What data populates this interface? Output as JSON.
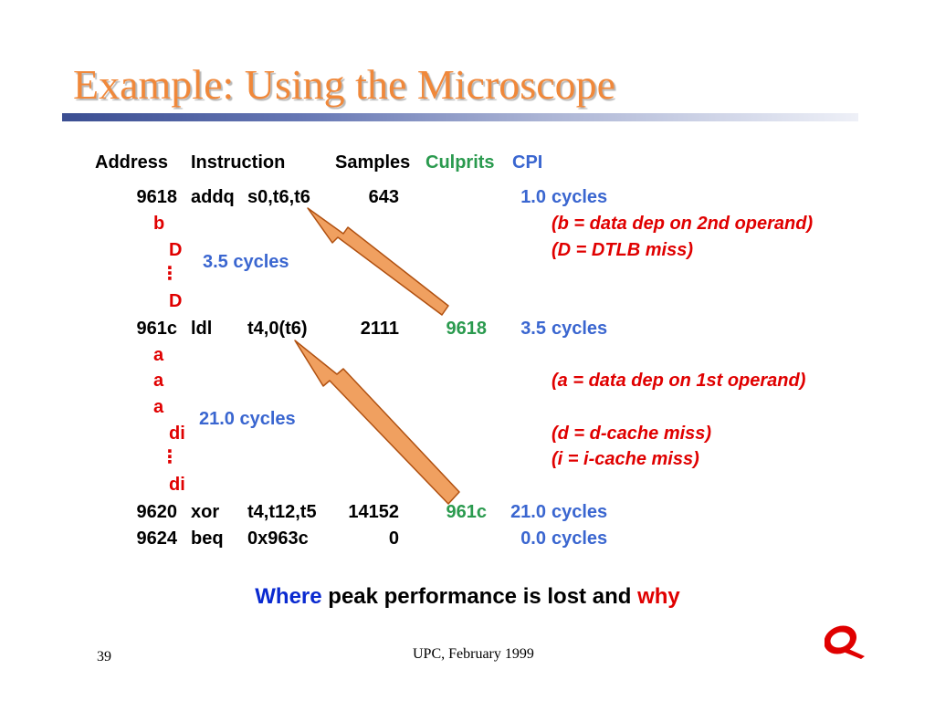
{
  "slide": {
    "title": "Example: Using the Microscope",
    "header": {
      "address": "Address",
      "instruction": "Instruction",
      "samples": "Samples",
      "culprits": "Culprits",
      "cpi": "CPI"
    },
    "rows": [
      {
        "address": "9618",
        "op": "addq",
        "operands": "s0,t6,t6",
        "samples": "643",
        "culprit": "",
        "cpi": "1.0",
        "unit": "cycles"
      },
      {
        "address": "961c",
        "op": "ldl",
        "operands": "t4,0(t6)",
        "samples": "2111",
        "culprit": "9618",
        "cpi": "3.5",
        "unit": "cycles"
      },
      {
        "address": "9620",
        "op": "xor",
        "operands": "t4,t12,t5",
        "samples": "14152",
        "culprit": "961c",
        "cpi": "21.0",
        "unit": "cycles"
      },
      {
        "address": "9624",
        "op": "beq",
        "operands": "0x963c",
        "samples": "0",
        "culprit": "",
        "cpi": "0.0",
        "unit": "cycles"
      }
    ],
    "stalls_1": {
      "b": "b",
      "d1": "D",
      "dots": "⋮",
      "d2": "D",
      "duration": "3.5 cycles"
    },
    "stalls_2": {
      "a1": "a",
      "a2": "a",
      "a3": "a",
      "di1": "di",
      "dots": "⋮",
      "di2": "di",
      "duration": "21.0 cycles"
    },
    "notes": {
      "b": "(b = data dep on 2nd operand)",
      "D": "(D = DTLB miss)",
      "a": "(a = data dep on 1st operand)",
      "d": "(d = d-cache miss)",
      "i": "(i = i-cache miss)"
    },
    "tagline": {
      "where": "Where",
      "middle": " peak performance is lost and ",
      "why": "why"
    },
    "footer": {
      "page_number": "39",
      "center_text": "UPC, February 1999"
    },
    "colors": {
      "title": "#f0883a",
      "blue": "#3a66d0",
      "red": "#e00000",
      "green": "#2a9a4e",
      "arrow_fill": "#f0a060",
      "arrow_stroke": "#b05010"
    },
    "logo_icon": "compaq-q-logo"
  }
}
